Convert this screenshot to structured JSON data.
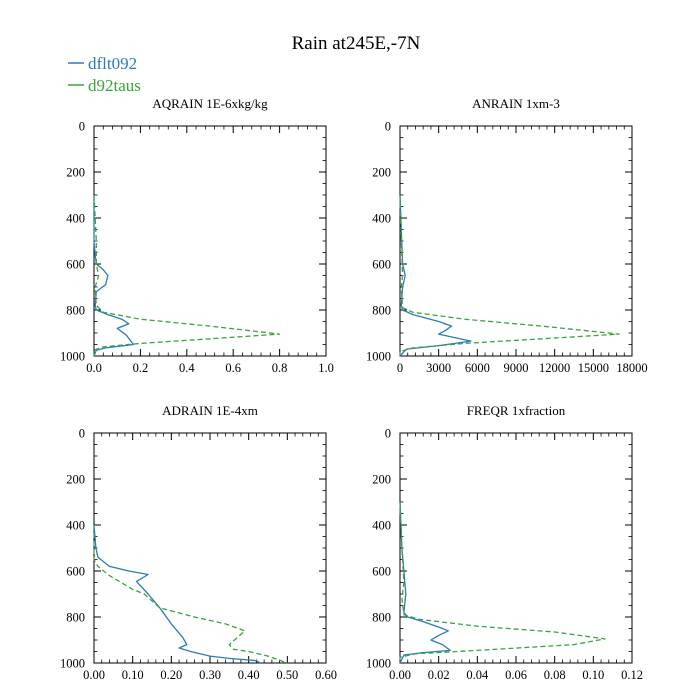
{
  "chart_data": {
    "title": "Rain at245E,-7N",
    "legend": [
      {
        "name": "dflt092",
        "color": "#2b7bba",
        "style": "solid"
      },
      {
        "name": "d92taus",
        "color": "#3ca33c",
        "style": "dashed"
      }
    ],
    "panels": [
      {
        "type": "line",
        "title": "AQRAIN  1E-6xkg/kg",
        "xlim": [
          0,
          1.0
        ],
        "ylim": [
          1000,
          0
        ],
        "xticks": [
          0.0,
          0.2,
          0.4,
          0.6,
          0.8,
          1.0
        ],
        "xtick_labels": [
          "0.0",
          "0.2",
          "0.4",
          "0.6",
          "0.8",
          "1.0"
        ],
        "yticks": [
          0,
          200,
          400,
          600,
          800,
          1000
        ],
        "ytick_labels": [
          "0",
          "200",
          "400",
          "600",
          "800",
          "1000"
        ],
        "series": [
          {
            "name": "dflt092",
            "points": [
              [
                0,
                300
              ],
              [
                0,
                500
              ],
              [
                0.005,
                560
              ],
              [
                0.01,
                600
              ],
              [
                0.04,
                625
              ],
              [
                0.06,
                650
              ],
              [
                0.05,
                690
              ],
              [
                0.01,
                720
              ],
              [
                0.005,
                780
              ],
              [
                0.01,
                800
              ],
              [
                0.06,
                820
              ],
              [
                0.12,
                840
              ],
              [
                0.15,
                860
              ],
              [
                0.1,
                880
              ],
              [
                0.14,
                910
              ],
              [
                0.17,
                950
              ],
              [
                0.05,
                965
              ],
              [
                0.01,
                975
              ],
              [
                0,
                1000
              ]
            ]
          },
          {
            "name": "d92taus",
            "points": [
              [
                0,
                300
              ],
              [
                0.01,
                500
              ],
              [
                0.01,
                600
              ],
              [
                0.02,
                650
              ],
              [
                0.005,
                700
              ],
              [
                0.01,
                780
              ],
              [
                0.04,
                810
              ],
              [
                0.2,
                840
              ],
              [
                0.5,
                870
              ],
              [
                0.8,
                905
              ],
              [
                0.5,
                925
              ],
              [
                0.2,
                945
              ],
              [
                0.04,
                960
              ],
              [
                0,
                975
              ],
              [
                0,
                1000
              ]
            ]
          }
        ]
      },
      {
        "type": "line",
        "title": "ANRAIN  1xm-3",
        "xlim": [
          0,
          18000
        ],
        "ylim": [
          1000,
          0
        ],
        "xticks": [
          0,
          3000,
          6000,
          9000,
          12000,
          15000,
          18000
        ],
        "xtick_labels": [
          "0",
          "3000",
          "6000",
          "9000",
          "12000",
          "15000",
          "18000"
        ],
        "yticks": [
          0,
          200,
          400,
          600,
          800,
          1000
        ],
        "ytick_labels": [
          "0",
          "200",
          "400",
          "600",
          "800",
          "1000"
        ],
        "series": [
          {
            "name": "dflt092",
            "points": [
              [
                0,
                300
              ],
              [
                100,
                450
              ],
              [
                200,
                600
              ],
              [
                400,
                650
              ],
              [
                200,
                700
              ],
              [
                100,
                780
              ],
              [
                200,
                800
              ],
              [
                1000,
                820
              ],
              [
                3000,
                850
              ],
              [
                4000,
                870
              ],
              [
                3500,
                890
              ],
              [
                3000,
                905
              ],
              [
                5500,
                935
              ],
              [
                3000,
                955
              ],
              [
                500,
                970
              ],
              [
                0,
                1000
              ]
            ]
          },
          {
            "name": "d92taus",
            "points": [
              [
                0,
                300
              ],
              [
                100,
                500
              ],
              [
                200,
                650
              ],
              [
                100,
                700
              ],
              [
                200,
                790
              ],
              [
                1000,
                810
              ],
              [
                5000,
                840
              ],
              [
                11000,
                870
              ],
              [
                17000,
                905
              ],
              [
                11000,
                925
              ],
              [
                5000,
                945
              ],
              [
                1000,
                965
              ],
              [
                0,
                980
              ],
              [
                0,
                1000
              ]
            ]
          }
        ]
      },
      {
        "type": "line",
        "title": "ADRAIN  1E-4xm",
        "xlim": [
          0,
          0.6
        ],
        "ylim": [
          1000,
          0
        ],
        "xticks": [
          0.0,
          0.1,
          0.2,
          0.3,
          0.4,
          0.5,
          0.6
        ],
        "xtick_labels": [
          "0.00",
          "0.10",
          "0.20",
          "0.30",
          "0.40",
          "0.50",
          "0.60"
        ],
        "yticks": [
          0,
          200,
          400,
          600,
          800,
          1000
        ],
        "ytick_labels": [
          "0",
          "200",
          "400",
          "600",
          "800",
          "1000"
        ],
        "series": [
          {
            "name": "dflt092",
            "points": [
              [
                0,
                400
              ],
              [
                0.005,
                500
              ],
              [
                0.01,
                540
              ],
              [
                0.04,
                580
              ],
              [
                0.09,
                600
              ],
              [
                0.14,
                615
              ],
              [
                0.11,
                645
              ],
              [
                0.14,
                700
              ],
              [
                0.17,
                760
              ],
              [
                0.2,
                830
              ],
              [
                0.23,
                890
              ],
              [
                0.24,
                920
              ],
              [
                0.22,
                935
              ],
              [
                0.25,
                950
              ],
              [
                0.3,
                970
              ],
              [
                0.35,
                980
              ],
              [
                0.42,
                990
              ],
              [
                0.43,
                1000
              ]
            ]
          },
          {
            "name": "d92taus",
            "points": [
              [
                0,
                400
              ],
              [
                0,
                550
              ],
              [
                0.01,
                580
              ],
              [
                0.04,
                620
              ],
              [
                0.1,
                680
              ],
              [
                0.13,
                700
              ],
              [
                0.17,
                760
              ],
              [
                0.26,
                800
              ],
              [
                0.34,
                830
              ],
              [
                0.39,
                860
              ],
              [
                0.37,
                890
              ],
              [
                0.35,
                920
              ],
              [
                0.36,
                940
              ],
              [
                0.4,
                950
              ],
              [
                0.45,
                970
              ],
              [
                0.5,
                1000
              ]
            ]
          }
        ]
      },
      {
        "type": "line",
        "title": "FREQR  1xfraction",
        "xlim": [
          0,
          0.12
        ],
        "ylim": [
          1000,
          0
        ],
        "xticks": [
          0.0,
          0.02,
          0.04,
          0.06,
          0.08,
          0.1,
          0.12
        ],
        "xtick_labels": [
          "0.00",
          "0.02",
          "0.04",
          "0.06",
          "0.08",
          "0.10",
          "0.12"
        ],
        "yticks": [
          0,
          200,
          400,
          600,
          800,
          1000
        ],
        "ytick_labels": [
          "0",
          "200",
          "400",
          "600",
          "800",
          "1000"
        ],
        "series": [
          {
            "name": "dflt092",
            "points": [
              [
                0,
                300
              ],
              [
                0.001,
                500
              ],
              [
                0.002,
                600
              ],
              [
                0.003,
                700
              ],
              [
                0.002,
                780
              ],
              [
                0.004,
                800
              ],
              [
                0.012,
                820
              ],
              [
                0.022,
                850
              ],
              [
                0.025,
                860
              ],
              [
                0.02,
                880
              ],
              [
                0.016,
                900
              ],
              [
                0.022,
                920
              ],
              [
                0.026,
                945
              ],
              [
                0.012,
                955
              ],
              [
                0.002,
                965
              ],
              [
                0,
                1000
              ]
            ]
          },
          {
            "name": "d92taus",
            "points": [
              [
                0,
                300
              ],
              [
                0.001,
                500
              ],
              [
                0.002,
                650
              ],
              [
                0.001,
                720
              ],
              [
                0.002,
                790
              ],
              [
                0.01,
                810
              ],
              [
                0.04,
                840
              ],
              [
                0.08,
                865
              ],
              [
                0.106,
                895
              ],
              [
                0.09,
                920
              ],
              [
                0.04,
                945
              ],
              [
                0.008,
                960
              ],
              [
                0,
                975
              ],
              [
                0,
                1000
              ]
            ]
          }
        ]
      }
    ]
  }
}
